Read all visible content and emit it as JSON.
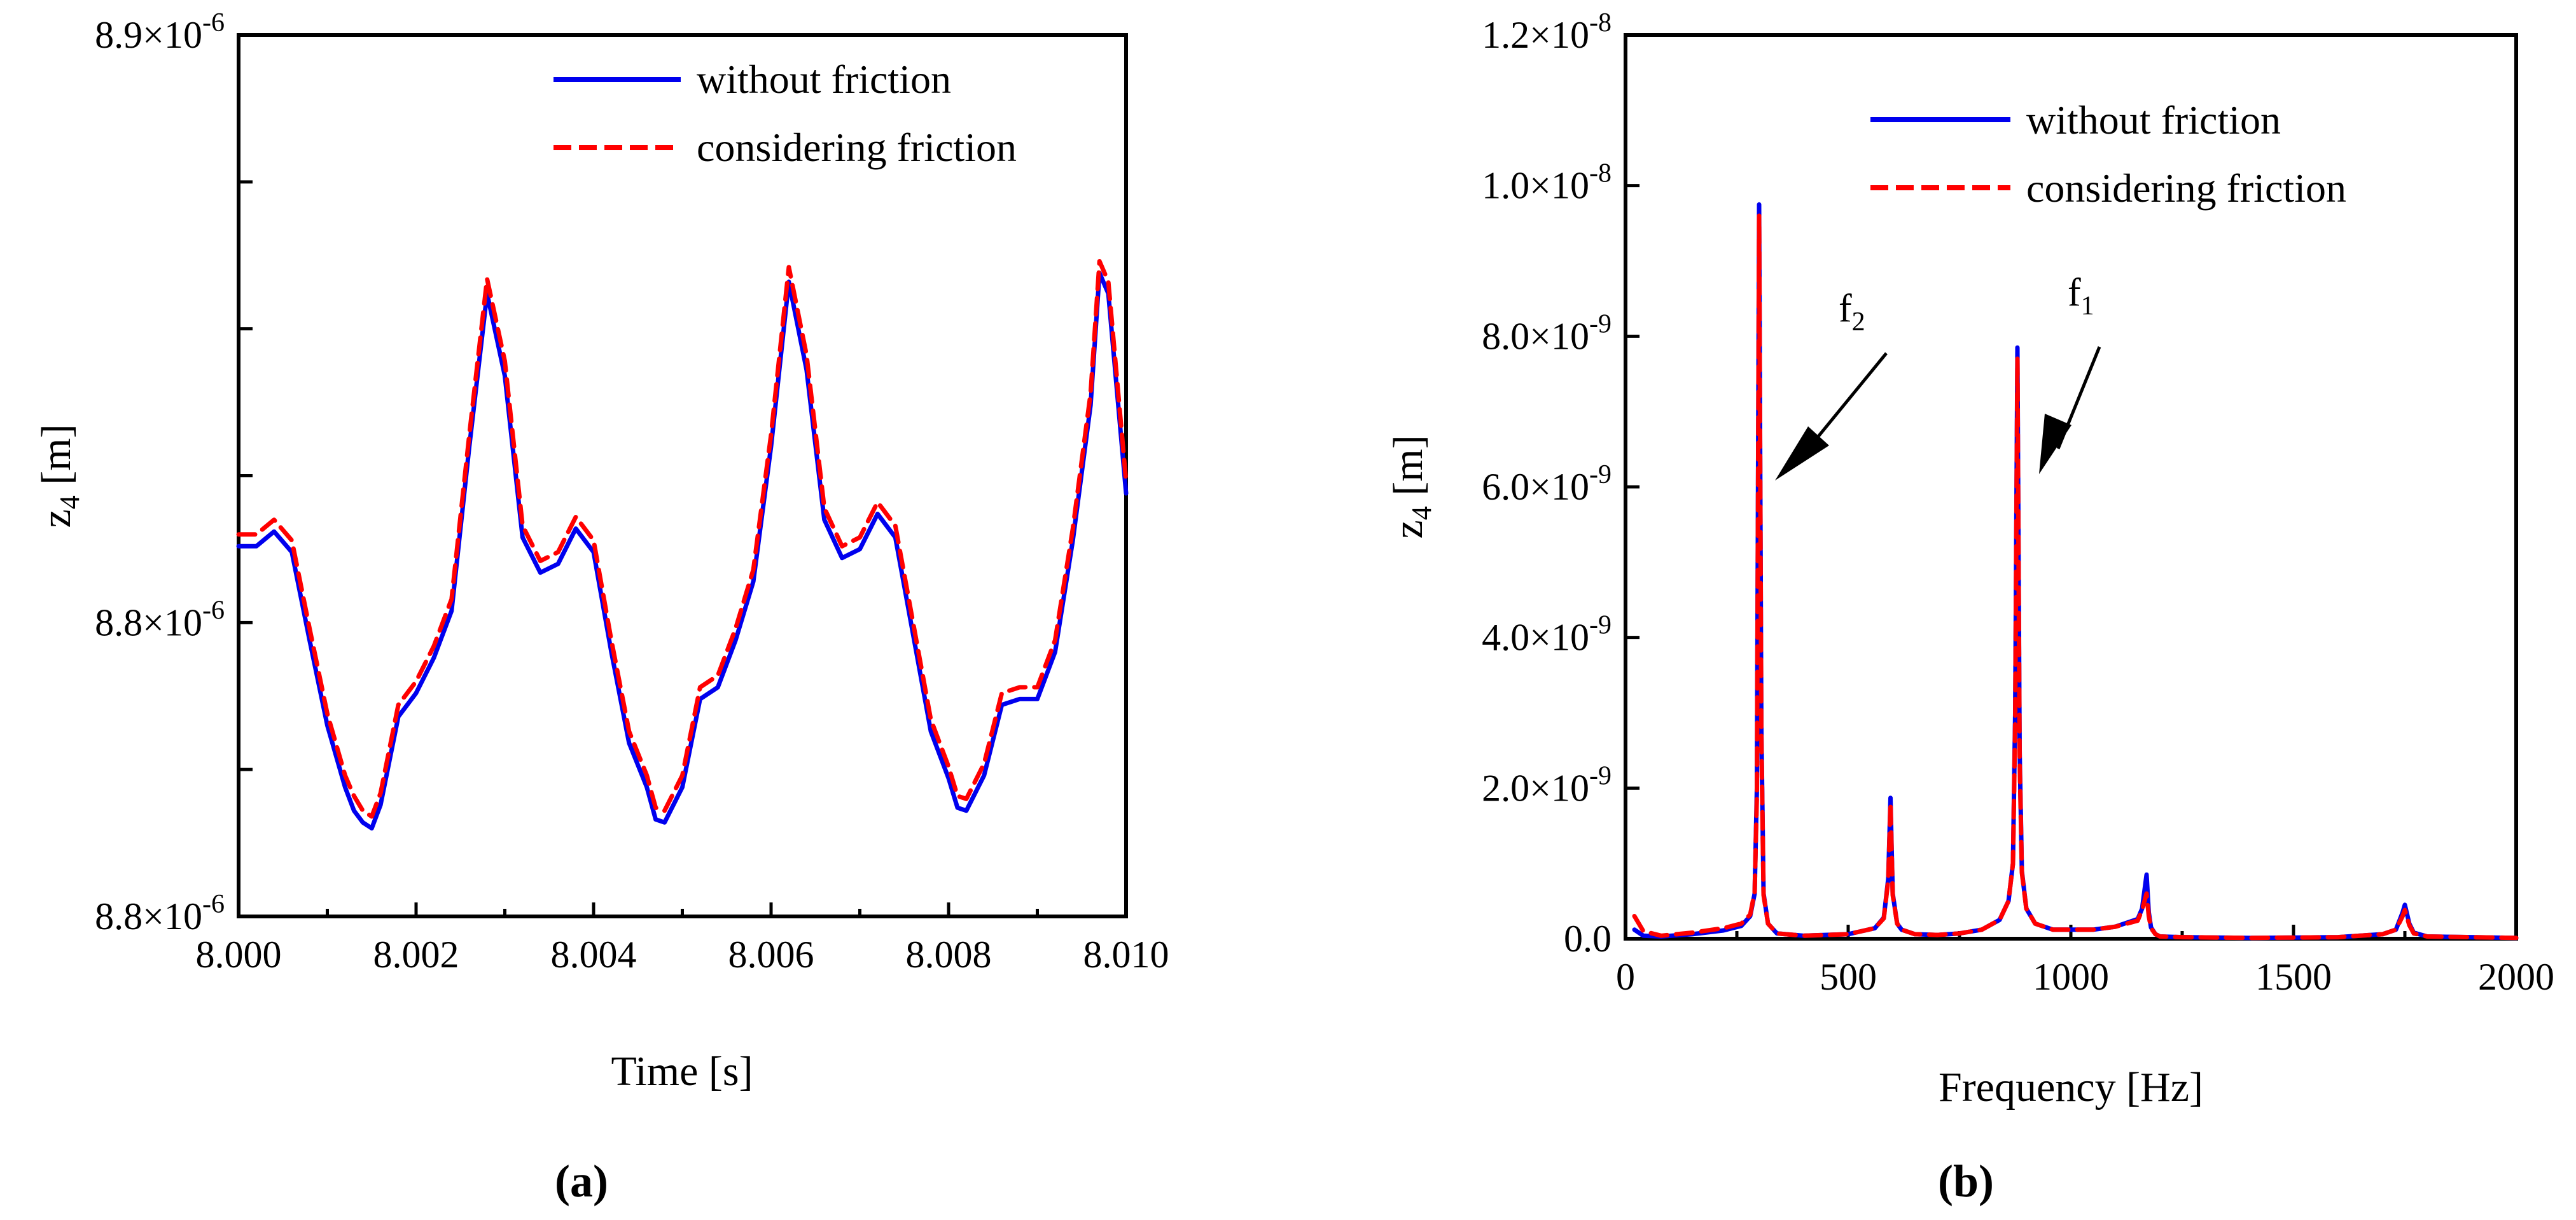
{
  "chart_data": [
    {
      "id": "a",
      "type": "line",
      "sub_label": "(a)",
      "xlabel": "Time [s]",
      "ylabel_main": "z",
      "ylabel_sub": "4",
      "ylabel_unit": " [m]",
      "xlim": [
        8.0,
        8.01
      ],
      "ylim": [
        8.75,
        8.9
      ],
      "xticks": [
        {
          "value": 8.0,
          "label": "8.000"
        },
        {
          "value": 8.002,
          "label": "8.002"
        },
        {
          "value": 8.004,
          "label": "8.004"
        },
        {
          "value": 8.006,
          "label": "8.006"
        },
        {
          "value": 8.008,
          "label": "8.008"
        },
        {
          "value": 8.01,
          "label": "8.010"
        }
      ],
      "yticks": [
        {
          "value": 8.9,
          "base": "8.9×10",
          "exp": "-6",
          "labeled": true
        },
        {
          "value": 8.875,
          "labeled": false
        },
        {
          "value": 8.85,
          "labeled": false
        },
        {
          "value": 8.825,
          "labeled": false
        },
        {
          "value": 8.8,
          "base": "8.8×10",
          "exp": "-6",
          "labeled": true
        },
        {
          "value": 8.775,
          "labeled": false
        },
        {
          "value": 8.75,
          "base": "8.8×10",
          "exp": "-6",
          "labeled": true
        }
      ],
      "series": [
        {
          "name": "without friction",
          "color": "#0000ee",
          "dashed": false,
          "x": [
            8.0,
            8.0002,
            8.0004,
            8.0006,
            8.0008,
            8.001,
            8.0012,
            8.0013,
            8.0014,
            8.0015,
            8.0016,
            8.0018,
            8.002,
            8.0022,
            8.0024,
            8.0026,
            8.0028,
            8.003,
            8.0032,
            8.0034,
            8.0036,
            8.0038,
            8.004,
            8.0042,
            8.0044,
            8.0046,
            8.0047,
            8.0048,
            8.005,
            8.0052,
            8.0054,
            8.0056,
            8.0058,
            8.006,
            8.0062,
            8.0064,
            8.0066,
            8.0068,
            8.007,
            8.0072,
            8.0074,
            8.0076,
            8.0078,
            8.008,
            8.0081,
            8.0082,
            8.0084,
            8.0086,
            8.0088,
            8.009,
            8.0092,
            8.0094,
            8.0096,
            8.0097,
            8.0098,
            8.01
          ],
          "y": [
            8.813,
            8.813,
            8.8155,
            8.812,
            8.797,
            8.7825,
            8.772,
            8.768,
            8.766,
            8.765,
            8.769,
            8.784,
            8.788,
            8.794,
            8.802,
            8.83,
            8.856,
            8.842,
            8.8145,
            8.8085,
            8.81,
            8.816,
            8.812,
            8.795,
            8.7795,
            8.772,
            8.7665,
            8.766,
            8.772,
            8.787,
            8.789,
            8.797,
            8.807,
            8.83,
            8.858,
            8.843,
            8.8175,
            8.811,
            8.8125,
            8.8185,
            8.8145,
            8.798,
            8.7815,
            8.7735,
            8.7685,
            8.768,
            8.774,
            8.786,
            8.787,
            8.787,
            8.795,
            8.814,
            8.837,
            8.8595,
            8.856,
            8.822
          ]
        },
        {
          "name": "considering friction",
          "color": "#ff0000",
          "dashed": true,
          "x": [
            8.0,
            8.0002,
            8.0004,
            8.0006,
            8.0008,
            8.001,
            8.0012,
            8.0013,
            8.0014,
            8.0015,
            8.0016,
            8.0018,
            8.002,
            8.0022,
            8.0024,
            8.0026,
            8.0028,
            8.003,
            8.0032,
            8.0034,
            8.0036,
            8.0038,
            8.004,
            8.0042,
            8.0044,
            8.0046,
            8.0047,
            8.0048,
            8.005,
            8.0052,
            8.0054,
            8.0056,
            8.0058,
            8.006,
            8.0062,
            8.0064,
            8.0066,
            8.0068,
            8.007,
            8.0072,
            8.0074,
            8.0076,
            8.0078,
            8.008,
            8.0081,
            8.0082,
            8.0084,
            8.0086,
            8.0088,
            8.009,
            8.0092,
            8.0094,
            8.0096,
            8.0097,
            8.0098,
            8.01
          ],
          "y": [
            8.815,
            8.815,
            8.8175,
            8.814,
            8.799,
            8.7845,
            8.774,
            8.7705,
            8.768,
            8.767,
            8.771,
            8.786,
            8.79,
            8.796,
            8.804,
            8.832,
            8.8585,
            8.8445,
            8.8165,
            8.8105,
            8.812,
            8.818,
            8.814,
            8.797,
            8.7815,
            8.774,
            8.7685,
            8.768,
            8.774,
            8.789,
            8.791,
            8.799,
            8.809,
            8.832,
            8.8605,
            8.8455,
            8.8195,
            8.813,
            8.8145,
            8.8205,
            8.8165,
            8.8,
            8.7835,
            8.7755,
            8.7705,
            8.77,
            8.776,
            8.788,
            8.789,
            8.789,
            8.797,
            8.816,
            8.839,
            8.8615,
            8.858,
            8.824
          ]
        }
      ]
    },
    {
      "id": "b",
      "type": "line",
      "sub_label": "(b)",
      "xlabel": "Frequency [Hz]",
      "ylabel_main": "z",
      "ylabel_sub": "4",
      "ylabel_unit": " [m]",
      "xlim": [
        0,
        2000
      ],
      "ylim": [
        0,
        1.2
      ],
      "y_scale_note": "y values in units of 1e-8 m",
      "xticks": [
        {
          "value": 0,
          "label": "0"
        },
        {
          "value": 500,
          "label": "500"
        },
        {
          "value": 1000,
          "label": "1000"
        },
        {
          "value": 1500,
          "label": "1500"
        },
        {
          "value": 2000,
          "label": "2000"
        }
      ],
      "yticks": [
        {
          "value": 0,
          "base": "0.0",
          "exp": "",
          "labeled": true
        },
        {
          "value": 0.2,
          "base": "2.0×10",
          "exp": "-9",
          "labeled": true
        },
        {
          "value": 0.4,
          "base": "4.0×10",
          "exp": "-9",
          "labeled": true
        },
        {
          "value": 0.6,
          "base": "6.0×10",
          "exp": "-9",
          "labeled": true
        },
        {
          "value": 0.8,
          "base": "8.0×10",
          "exp": "-9",
          "labeled": true
        },
        {
          "value": 1.0,
          "base": "1.0×10",
          "exp": "-8",
          "labeled": true
        },
        {
          "value": 1.2,
          "base": "1.2×10",
          "exp": "-8",
          "labeled": true
        }
      ],
      "series": [
        {
          "name": "without friction",
          "color": "#0000ee",
          "dashed": false,
          "x": [
            20,
            40,
            80,
            150,
            220,
            260,
            280,
            290,
            295,
            300,
            305,
            310,
            320,
            340,
            400,
            500,
            560,
            580,
            590,
            595,
            600,
            610,
            620,
            650,
            700,
            750,
            800,
            840,
            860,
            870,
            875,
            880,
            885,
            890,
            900,
            920,
            960,
            1050,
            1100,
            1150,
            1160,
            1170,
            1175,
            1180,
            1190,
            1200,
            1250,
            1400,
            1600,
            1700,
            1730,
            1745,
            1750,
            1760,
            1770,
            1800,
            2000
          ],
          "y": [
            0.012,
            0.004,
            0.003,
            0.006,
            0.011,
            0.017,
            0.03,
            0.06,
            0.2,
            0.975,
            0.28,
            0.06,
            0.02,
            0.007,
            0.004,
            0.006,
            0.014,
            0.028,
            0.08,
            0.187,
            0.06,
            0.02,
            0.012,
            0.006,
            0.005,
            0.007,
            0.012,
            0.025,
            0.05,
            0.1,
            0.3,
            0.785,
            0.25,
            0.09,
            0.04,
            0.02,
            0.012,
            0.012,
            0.016,
            0.026,
            0.04,
            0.085,
            0.035,
            0.015,
            0.006,
            0.003,
            0.002,
            0.001,
            0.002,
            0.006,
            0.012,
            0.035,
            0.045,
            0.02,
            0.008,
            0.003,
            0.001
          ]
        },
        {
          "name": "considering  friction",
          "color": "#ff0000",
          "dashed": true,
          "x": [
            20,
            40,
            80,
            150,
            220,
            260,
            280,
            290,
            295,
            300,
            305,
            310,
            320,
            340,
            400,
            500,
            560,
            580,
            590,
            595,
            600,
            610,
            620,
            650,
            700,
            750,
            800,
            840,
            860,
            870,
            875,
            880,
            885,
            890,
            900,
            920,
            960,
            1050,
            1100,
            1150,
            1160,
            1170,
            1175,
            1180,
            1190,
            1200,
            1250,
            1400,
            1600,
            1700,
            1730,
            1745,
            1750,
            1760,
            1770,
            1800,
            2000
          ],
          "y": [
            0.03,
            0.01,
            0.004,
            0.008,
            0.014,
            0.02,
            0.032,
            0.062,
            0.19,
            0.96,
            0.27,
            0.058,
            0.02,
            0.007,
            0.004,
            0.006,
            0.014,
            0.027,
            0.078,
            0.18,
            0.058,
            0.02,
            0.012,
            0.006,
            0.005,
            0.007,
            0.012,
            0.025,
            0.05,
            0.1,
            0.29,
            0.77,
            0.24,
            0.088,
            0.04,
            0.02,
            0.012,
            0.012,
            0.016,
            0.024,
            0.038,
            0.06,
            0.03,
            0.014,
            0.006,
            0.003,
            0.002,
            0.001,
            0.002,
            0.006,
            0.012,
            0.03,
            0.038,
            0.018,
            0.007,
            0.003,
            0.001
          ]
        }
      ],
      "annotations": [
        {
          "name": "f2-annotation",
          "text_main": "f",
          "text_sub": "2",
          "target_x": 300,
          "target_y": 0.63
        },
        {
          "name": "f1-annotation",
          "text_main": "f",
          "text_sub": "1",
          "target_x": 880,
          "target_y": 0.63
        }
      ]
    }
  ]
}
